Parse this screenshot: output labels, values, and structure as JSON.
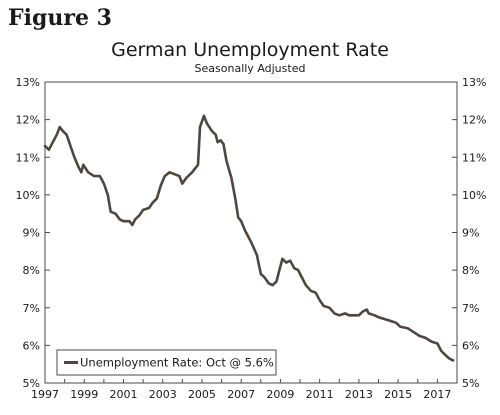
{
  "figure_label": "Figure 3",
  "chart_data": {
    "type": "line",
    "title": "German Unemployment Rate",
    "subtitle": "Seasonally Adjusted",
    "xlabel": "",
    "ylabel": "",
    "xlim": [
      1997,
      2018
    ],
    "ylim": [
      5,
      13
    ],
    "x_ticks": [
      1997,
      1999,
      2001,
      2003,
      2005,
      2007,
      2009,
      2011,
      2013,
      2015,
      2017
    ],
    "y_ticks": [
      "5%",
      "6%",
      "7%",
      "8%",
      "9%",
      "10%",
      "11%",
      "12%",
      "13%"
    ],
    "y_tick_values": [
      5,
      6,
      7,
      8,
      9,
      10,
      11,
      12,
      13
    ],
    "grid": false,
    "legend_position": "bottom-left",
    "line_color": "#4f463d",
    "series": [
      {
        "name": "Unemployment Rate: Oct @ 5.6%",
        "points": [
          [
            1997.0,
            11.3
          ],
          [
            1997.2,
            11.2
          ],
          [
            1997.4,
            11.4
          ],
          [
            1997.6,
            11.6
          ],
          [
            1997.75,
            11.8
          ],
          [
            1997.9,
            11.7
          ],
          [
            1998.1,
            11.6
          ],
          [
            1998.3,
            11.3
          ],
          [
            1998.5,
            11.0
          ],
          [
            1998.7,
            10.75
          ],
          [
            1998.85,
            10.6
          ],
          [
            1998.95,
            10.8
          ],
          [
            1999.2,
            10.6
          ],
          [
            1999.5,
            10.5
          ],
          [
            1999.8,
            10.5
          ],
          [
            2000.0,
            10.3
          ],
          [
            2000.2,
            10.0
          ],
          [
            2000.35,
            9.55
          ],
          [
            2000.6,
            9.5
          ],
          [
            2000.8,
            9.35
          ],
          [
            2001.0,
            9.3
          ],
          [
            2001.3,
            9.3
          ],
          [
            2001.45,
            9.2
          ],
          [
            2001.6,
            9.35
          ],
          [
            2001.8,
            9.45
          ],
          [
            2002.0,
            9.6
          ],
          [
            2002.3,
            9.65
          ],
          [
            2002.5,
            9.8
          ],
          [
            2002.7,
            9.9
          ],
          [
            2002.9,
            10.25
          ],
          [
            2003.1,
            10.5
          ],
          [
            2003.35,
            10.6
          ],
          [
            2003.6,
            10.55
          ],
          [
            2003.85,
            10.5
          ],
          [
            2004.0,
            10.3
          ],
          [
            2004.2,
            10.45
          ],
          [
            2004.5,
            10.6
          ],
          [
            2004.8,
            10.8
          ],
          [
            2004.9,
            11.8
          ],
          [
            2005.1,
            12.1
          ],
          [
            2005.25,
            11.9
          ],
          [
            2005.5,
            11.7
          ],
          [
            2005.7,
            11.6
          ],
          [
            2005.8,
            11.4
          ],
          [
            2005.95,
            11.45
          ],
          [
            2006.1,
            11.35
          ],
          [
            2006.25,
            10.9
          ],
          [
            2006.5,
            10.45
          ],
          [
            2006.7,
            9.9
          ],
          [
            2006.85,
            9.4
          ],
          [
            2007.0,
            9.3
          ],
          [
            2007.2,
            9.05
          ],
          [
            2007.5,
            8.75
          ],
          [
            2007.8,
            8.4
          ],
          [
            2008.0,
            7.9
          ],
          [
            2008.2,
            7.8
          ],
          [
            2008.4,
            7.65
          ],
          [
            2008.6,
            7.6
          ],
          [
            2008.8,
            7.7
          ],
          [
            2008.95,
            8.0
          ],
          [
            2009.1,
            8.3
          ],
          [
            2009.3,
            8.2
          ],
          [
            2009.5,
            8.25
          ],
          [
            2009.7,
            8.05
          ],
          [
            2009.9,
            8.0
          ],
          [
            2010.1,
            7.8
          ],
          [
            2010.3,
            7.6
          ],
          [
            2010.55,
            7.45
          ],
          [
            2010.8,
            7.4
          ],
          [
            2011.0,
            7.2
          ],
          [
            2011.2,
            7.05
          ],
          [
            2011.5,
            7.0
          ],
          [
            2011.75,
            6.85
          ],
          [
            2012.0,
            6.8
          ],
          [
            2012.3,
            6.85
          ],
          [
            2012.5,
            6.8
          ],
          [
            2012.8,
            6.8
          ],
          [
            2013.0,
            6.8
          ],
          [
            2013.2,
            6.9
          ],
          [
            2013.4,
            6.95
          ],
          [
            2013.5,
            6.85
          ],
          [
            2013.8,
            6.8
          ],
          [
            2014.0,
            6.75
          ],
          [
            2014.3,
            6.7
          ],
          [
            2014.6,
            6.65
          ],
          [
            2014.9,
            6.6
          ],
          [
            2015.1,
            6.5
          ],
          [
            2015.5,
            6.45
          ],
          [
            2015.8,
            6.35
          ],
          [
            2016.1,
            6.25
          ],
          [
            2016.4,
            6.2
          ],
          [
            2016.7,
            6.1
          ],
          [
            2017.0,
            6.05
          ],
          [
            2017.2,
            5.85
          ],
          [
            2017.4,
            5.75
          ],
          [
            2017.6,
            5.65
          ],
          [
            2017.8,
            5.6
          ]
        ]
      }
    ]
  }
}
